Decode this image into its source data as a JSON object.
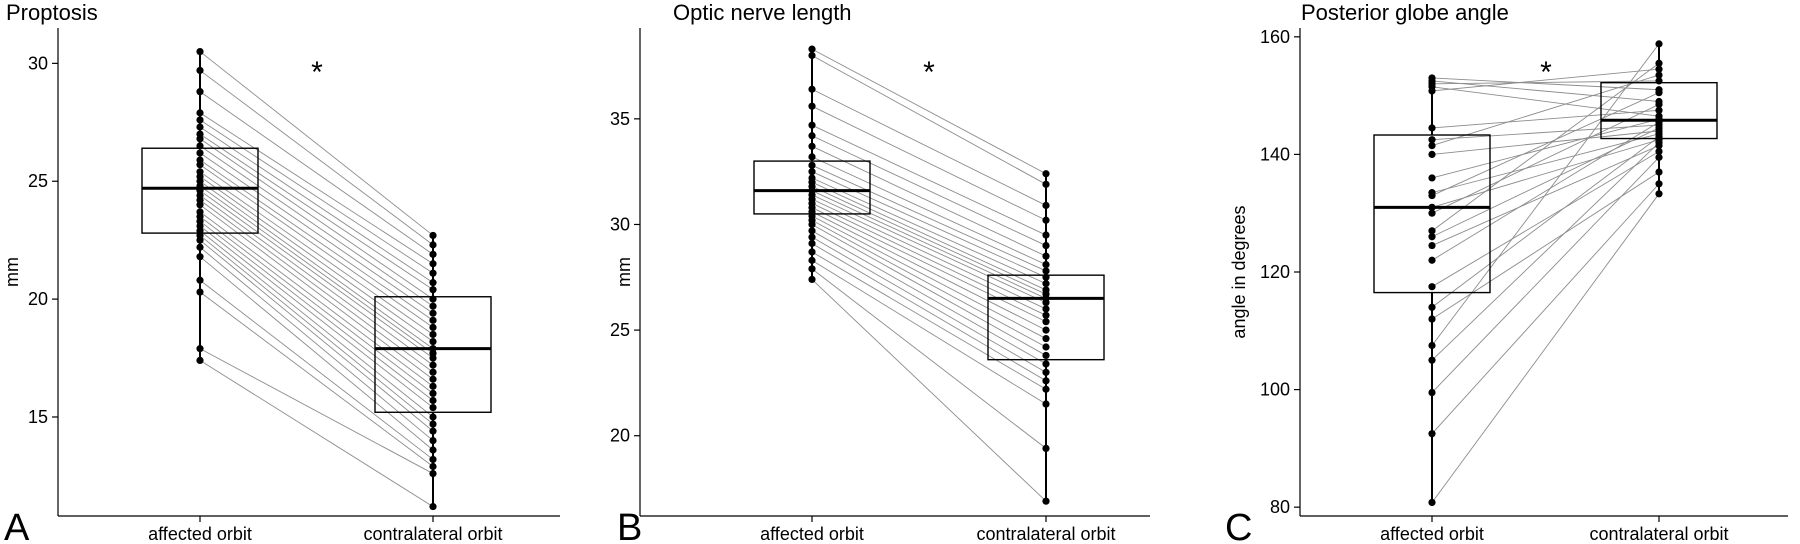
{
  "chart_data": [
    {
      "type": "box",
      "panel_label": "A",
      "title": "Proptosis",
      "xlabel": "",
      "ylabel": "mm",
      "categories": [
        "affected orbit",
        "contralateral orbit"
      ],
      "ylim": [
        10.8,
        31.5
      ],
      "yticks": [
        15,
        20,
        25,
        30
      ],
      "annotation": "*",
      "boxes": [
        {
          "q1": 22.8,
          "median": 24.7,
          "q3": 26.4,
          "whisker_low": 17.4,
          "whisker_high": 30.5
        },
        {
          "q1": 15.2,
          "median": 17.9,
          "q3": 20.1,
          "whisker_low": 11.2,
          "whisker_high": 22.7
        }
      ],
      "pairs": [
        [
          30.5,
          22.7
        ],
        [
          29.7,
          22.3
        ],
        [
          28.8,
          21.9
        ],
        [
          27.9,
          21.5
        ],
        [
          27.6,
          21.1
        ],
        [
          27.3,
          20.7
        ],
        [
          27.0,
          20.4
        ],
        [
          26.8,
          20.0
        ],
        [
          26.5,
          19.7
        ],
        [
          26.2,
          19.4
        ],
        [
          25.9,
          19.1
        ],
        [
          25.7,
          18.8
        ],
        [
          25.4,
          18.5
        ],
        [
          25.2,
          18.2
        ],
        [
          25.0,
          17.9
        ],
        [
          24.8,
          17.7
        ],
        [
          24.6,
          17.5
        ],
        [
          24.4,
          17.2
        ],
        [
          24.2,
          16.9
        ],
        [
          24.0,
          16.6
        ],
        [
          23.7,
          16.3
        ],
        [
          23.5,
          16.0
        ],
        [
          23.3,
          15.7
        ],
        [
          23.1,
          15.4
        ],
        [
          22.9,
          15.0
        ],
        [
          22.7,
          14.7
        ],
        [
          22.5,
          14.4
        ],
        [
          22.2,
          14.0
        ],
        [
          21.8,
          13.6
        ],
        [
          20.8,
          13.2
        ],
        [
          20.3,
          12.9
        ],
        [
          17.9,
          12.6
        ],
        [
          17.4,
          11.2
        ]
      ]
    },
    {
      "type": "box",
      "panel_label": "B",
      "title": "Optic nerve length",
      "xlabel": "",
      "ylabel": "mm",
      "categories": [
        "affected orbit",
        "contralateral orbit"
      ],
      "ylim": [
        16.2,
        39.3
      ],
      "yticks": [
        20,
        25,
        30,
        35
      ],
      "annotation": "*",
      "boxes": [
        {
          "q1": 30.5,
          "median": 31.6,
          "q3": 33.0,
          "whisker_low": 27.4,
          "whisker_high": 38.3
        },
        {
          "q1": 23.6,
          "median": 26.5,
          "q3": 27.6,
          "whisker_low": 16.9,
          "whisker_high": 32.4
        }
      ],
      "pairs": [
        [
          38.3,
          32.4
        ],
        [
          38.0,
          31.9
        ],
        [
          36.4,
          30.9
        ],
        [
          35.6,
          30.2
        ],
        [
          34.7,
          29.5
        ],
        [
          34.2,
          29.0
        ],
        [
          33.7,
          28.5
        ],
        [
          33.2,
          28.1
        ],
        [
          32.8,
          27.8
        ],
        [
          32.5,
          27.5
        ],
        [
          32.2,
          27.2
        ],
        [
          32.0,
          26.9
        ],
        [
          31.8,
          26.7
        ],
        [
          31.6,
          26.5
        ],
        [
          31.4,
          26.3
        ],
        [
          31.2,
          26.0
        ],
        [
          31.0,
          25.7
        ],
        [
          30.8,
          25.4
        ],
        [
          30.6,
          25.0
        ],
        [
          30.4,
          24.6
        ],
        [
          30.2,
          24.2
        ],
        [
          30.0,
          23.8
        ],
        [
          29.7,
          23.4
        ],
        [
          29.4,
          23.0
        ],
        [
          29.1,
          22.6
        ],
        [
          28.7,
          22.2
        ],
        [
          28.3,
          21.5
        ],
        [
          27.9,
          19.4
        ],
        [
          27.4,
          16.9
        ]
      ]
    },
    {
      "type": "box",
      "panel_label": "C",
      "title": "Posterior globe angle",
      "xlabel": "",
      "ylabel": "angle in degrees",
      "categories": [
        "affected orbit",
        "contralateral orbit"
      ],
      "ylim": [
        78.5,
        161.5
      ],
      "yticks": [
        80,
        100,
        120,
        140,
        160
      ],
      "annotation": "*",
      "boxes": [
        {
          "q1": 116.5,
          "median": 131.0,
          "q3": 143.3,
          "whisker_low": 80.8,
          "whisker_high": 153.0
        },
        {
          "q1": 142.7,
          "median": 145.8,
          "q3": 152.2,
          "whisker_low": 133.3,
          "whisker_high": 158.8
        }
      ],
      "pairs": [
        [
          153.0,
          151.0
        ],
        [
          152.5,
          149.0
        ],
        [
          152.0,
          152.5
        ],
        [
          151.5,
          146.5
        ],
        [
          150.8,
          154.5
        ],
        [
          144.5,
          147.5
        ],
        [
          142.5,
          145.0
        ],
        [
          141.5,
          153.5
        ],
        [
          140.0,
          144.0
        ],
        [
          136.0,
          146.0
        ],
        [
          133.5,
          143.5
        ],
        [
          133.0,
          150.5
        ],
        [
          131.0,
          142.5
        ],
        [
          130.0,
          148.5
        ],
        [
          127.0,
          155.5
        ],
        [
          126.0,
          144.5
        ],
        [
          124.5,
          141.5
        ],
        [
          122.0,
          145.5
        ],
        [
          117.5,
          140.5
        ],
        [
          114.0,
          143.0
        ],
        [
          112.0,
          137.0
        ],
        [
          107.5,
          158.8
        ],
        [
          105.0,
          142.0
        ],
        [
          99.5,
          139.5
        ],
        [
          92.5,
          135.0
        ],
        [
          80.8,
          133.3
        ]
      ]
    }
  ]
}
